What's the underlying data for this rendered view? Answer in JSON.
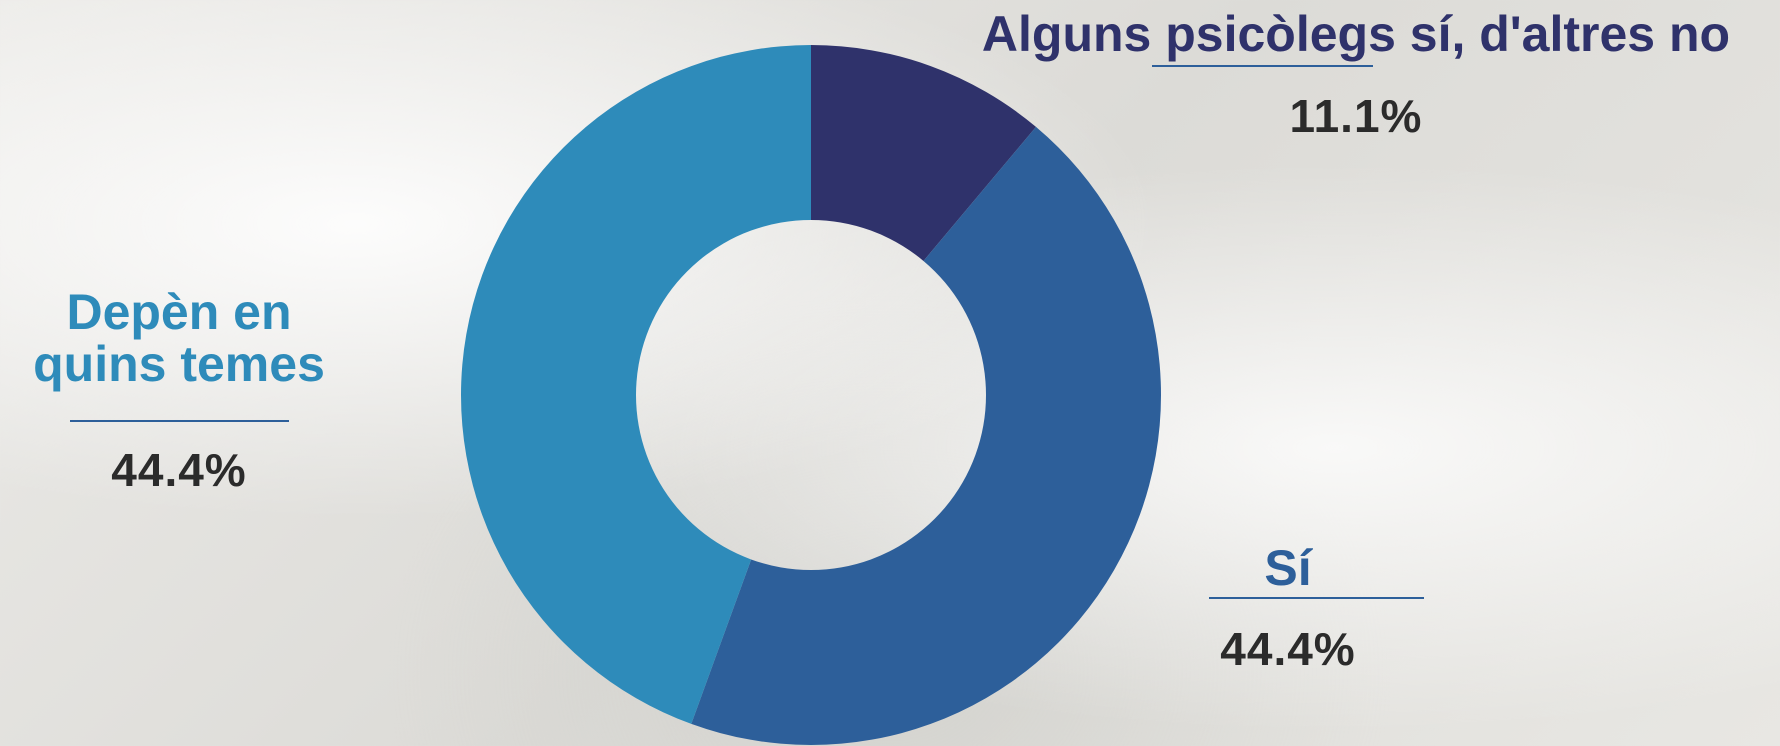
{
  "chart_data": {
    "type": "donut",
    "categories": [
      "Alguns psicòlegs sí, d'altres no",
      "Sí",
      "Depèn en quins  temes"
    ],
    "values": [
      11.1,
      44.4,
      44.4
    ],
    "value_labels": [
      "11.1%",
      "44.4%",
      "44.4%"
    ],
    "colors": [
      "#2f326b",
      "#2d5f9a",
      "#2e8bba"
    ]
  }
}
